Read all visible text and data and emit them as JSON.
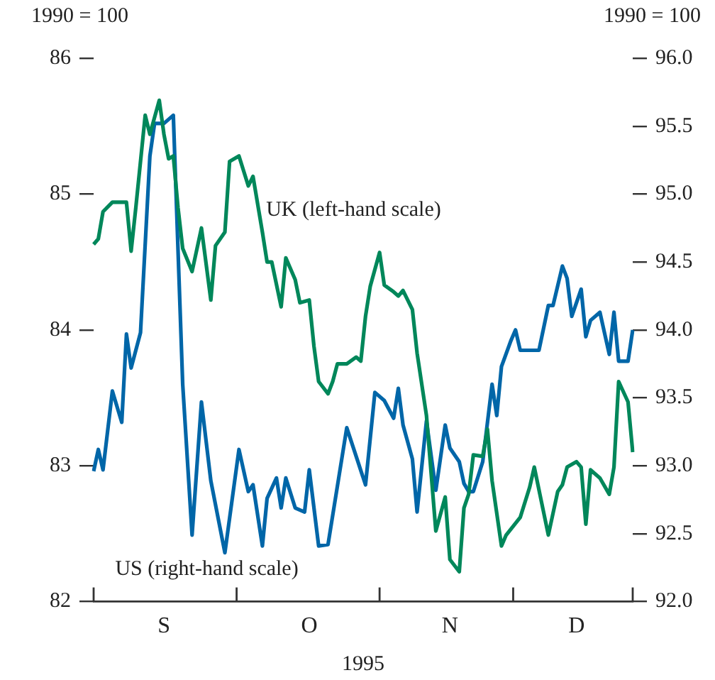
{
  "chart_data": {
    "type": "line",
    "ylabel": "1990 = 100",
    "y2label": "1990 = 100",
    "xlabel": "1995",
    "categories": [
      null,
      null,
      null,
      null,
      null,
      null,
      null,
      null,
      null,
      null,
      null,
      null,
      null,
      null,
      null,
      "S",
      null,
      null,
      null,
      null,
      null,
      null,
      null,
      null,
      null,
      null,
      null,
      null,
      null,
      null,
      null,
      null,
      null,
      null,
      null,
      null,
      null,
      null,
      null,
      null,
      null,
      null,
      null,
      null,
      null,
      null,
      "O",
      null,
      null,
      null,
      null,
      null,
      null,
      null,
      null,
      null,
      null,
      null,
      null,
      null,
      null,
      null,
      null,
      null,
      null,
      null,
      null,
      null,
      null,
      null,
      null,
      null,
      null,
      null,
      null,
      null,
      "N",
      null,
      null,
      null,
      null,
      null,
      null,
      null,
      null,
      null,
      null,
      null,
      null,
      null,
      null,
      null,
      null,
      null,
      null,
      null,
      null,
      null,
      null,
      null,
      null,
      null,
      null,
      "D",
      null,
      null,
      null,
      null,
      null,
      null,
      null,
      null,
      null,
      null,
      null,
      null
    ],
    "ylim": [
      82,
      86
    ],
    "yticks": [
      82,
      83,
      84,
      85,
      86
    ],
    "y2lim": [
      92,
      96
    ],
    "y2ticks": [
      {
        "value": 92,
        "label": "92.0"
      },
      {
        "value": 92.5,
        "label": "92.5"
      },
      {
        "value": 93,
        "label": "93.0"
      },
      {
        "value": 93.5,
        "label": "93.5"
      },
      {
        "value": 94,
        "label": "94.0"
      },
      {
        "value": 94.5,
        "label": "94.5"
      },
      {
        "value": 95,
        "label": "95.0"
      },
      {
        "value": 95.5,
        "label": "95.5"
      },
      {
        "value": 96,
        "label": "96.0"
      }
    ],
    "grid": false,
    "legend": false,
    "marker": "none",
    "line_style": "solid",
    "series": [
      {
        "name": "UK (left-hand scale)",
        "color": "#00875a",
        "axis": "y",
        "values": [
          84.63,
          84.67,
          84.87,
          null,
          84.94,
          null,
          null,
          84.94,
          84.58,
          84.9,
          null,
          85.58,
          85.44,
          null,
          85.69,
          85.44,
          85.26,
          85.28,
          84.9,
          84.6,
          null,
          84.43,
          null,
          84.75,
          null,
          84.22,
          84.62,
          null,
          84.72,
          85.24,
          null,
          85.28,
          null,
          85.06,
          85.13,
          null,
          84.72,
          84.5,
          84.5,
          null,
          84.17,
          84.53,
          null,
          84.37,
          84.2,
          null,
          84.22,
          83.88,
          83.62,
          null,
          83.53,
          83.62,
          83.75,
          null,
          83.75,
          null,
          83.8,
          83.77,
          84.1,
          84.32,
          null,
          84.57,
          84.33,
          null,
          84.28,
          84.25,
          84.29,
          null,
          84.15,
          83.83,
          null,
          83.37,
          null,
          82.52,
          null,
          82.77,
          82.31,
          null,
          82.22,
          82.69,
          82.79,
          83.08,
          null,
          83.07,
          83.27,
          82.89,
          null,
          82.41,
          82.49,
          null,
          null,
          82.62,
          null,
          82.84,
          82.99,
          null,
          null,
          82.49,
          null,
          82.81,
          82.86,
          82.99,
          null,
          83.03,
          82.99,
          82.57,
          82.97,
          null,
          82.91,
          null,
          82.79,
          82.99,
          83.62,
          null,
          83.47,
          83.1
        ]
      },
      {
        "name": "US (right-hand scale)",
        "color": "#0066a8",
        "axis": "y2",
        "values": [
          92.96,
          93.12,
          92.97,
          null,
          93.55,
          null,
          93.32,
          93.97,
          93.72,
          null,
          93.98,
          null,
          95.28,
          95.52,
          null,
          95.52,
          null,
          95.58,
          null,
          93.6,
          null,
          92.49,
          null,
          93.47,
          null,
          92.89,
          null,
          null,
          92.36,
          null,
          null,
          93.12,
          null,
          92.81,
          92.86,
          null,
          92.41,
          92.76,
          null,
          92.91,
          92.69,
          92.91,
          null,
          92.69,
          null,
          92.66,
          92.97,
          null,
          92.41,
          null,
          92.42,
          null,
          null,
          null,
          93.28,
          null,
          null,
          null,
          92.86,
          null,
          93.54,
          null,
          93.48,
          null,
          93.35,
          93.57,
          93.3,
          null,
          93.05,
          92.66,
          null,
          93.33,
          null,
          92.82,
          null,
          93.3,
          93.13,
          null,
          93.03,
          92.87,
          92.81,
          92.81,
          null,
          93.03,
          null,
          93.6,
          93.37,
          93.73,
          null,
          93.92,
          94.0,
          93.85,
          null,
          null,
          null,
          93.85,
          null,
          94.18,
          94.18,
          null,
          94.47,
          94.38,
          94.1,
          null,
          94.3,
          93.95,
          94.07,
          null,
          94.13,
          null,
          93.82,
          94.13,
          93.77,
          null,
          93.77,
          94.0
        ]
      }
    ]
  }
}
